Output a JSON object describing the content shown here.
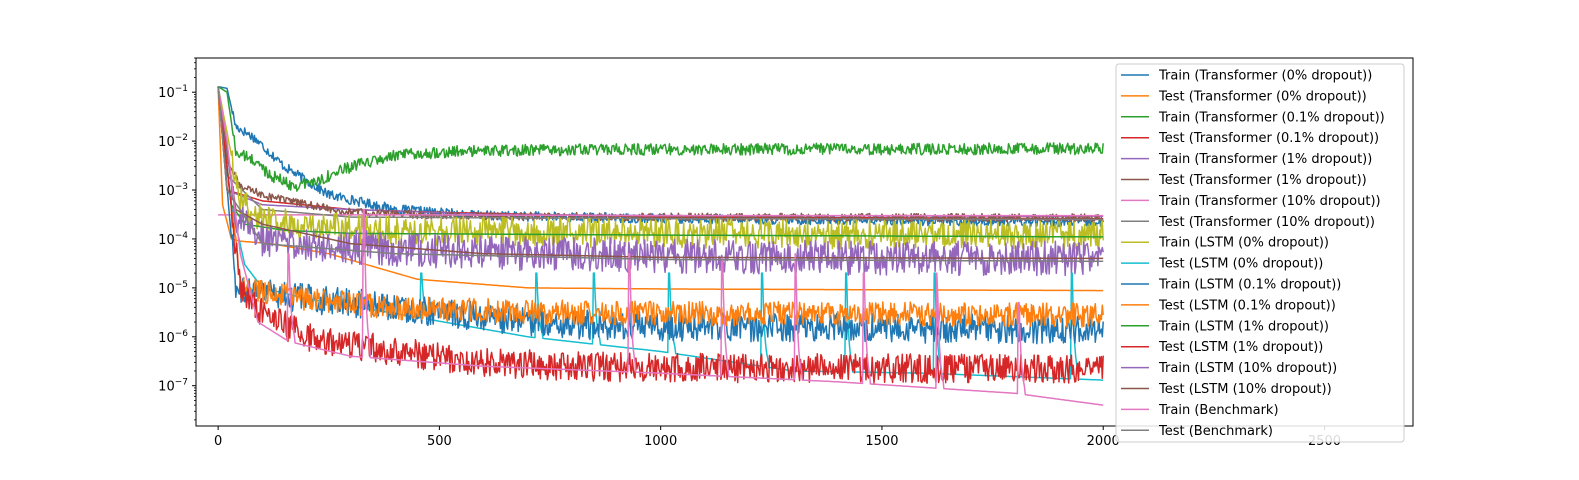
{
  "chart_data": {
    "type": "line",
    "title": "",
    "xlabel": "",
    "ylabel": "",
    "x_scale": "linear",
    "y_scale": "log",
    "xlim": [
      -50,
      2700
    ],
    "ylim": [
      1.5e-08,
      0.5
    ],
    "grid": false,
    "legend_position": "right",
    "x_ticks": [
      {
        "value": 0,
        "label": "0"
      },
      {
        "value": 500,
        "label": "500"
      },
      {
        "value": 1000,
        "label": "1000"
      },
      {
        "value": 1500,
        "label": "1500"
      },
      {
        "value": 2000,
        "label": "2000"
      },
      {
        "value": 2500,
        "label": "2500"
      }
    ],
    "y_ticks": [
      {
        "value": 0.1,
        "base": "10",
        "exp": "−1"
      },
      {
        "value": 0.01,
        "base": "10",
        "exp": "−2"
      },
      {
        "value": 0.001,
        "base": "10",
        "exp": "−3"
      },
      {
        "value": 0.0001,
        "base": "10",
        "exp": "−4"
      },
      {
        "value": 1e-05,
        "base": "10",
        "exp": "−5"
      },
      {
        "value": 1e-06,
        "base": "10",
        "exp": "−6"
      },
      {
        "value": 1e-07,
        "base": "10",
        "exp": "−7"
      }
    ],
    "series": [
      {
        "name": "Train (Transformer (0% dropout))",
        "color": "#1f77b4",
        "noise": 0.1,
        "points": [
          [
            0,
            0.13
          ],
          [
            20,
            0.12
          ],
          [
            40,
            0.02
          ],
          [
            80,
            0.012
          ],
          [
            150,
            0.003
          ],
          [
            250,
            0.0008
          ],
          [
            400,
            0.0004
          ],
          [
            600,
            0.0003
          ],
          [
            1000,
            0.00026
          ],
          [
            1500,
            0.00024
          ],
          [
            2000,
            0.00022
          ]
        ]
      },
      {
        "name": "Test (Transformer (0% dropout))",
        "color": "#ff7f0e",
        "noise": 0.0,
        "points": [
          [
            0,
            0.13
          ],
          [
            10,
            0.0005
          ],
          [
            30,
            0.0001
          ],
          [
            50,
            9e-05
          ],
          [
            120,
            8e-05
          ],
          [
            250,
            5e-05
          ],
          [
            450,
            1.5e-05
          ],
          [
            700,
            1e-05
          ],
          [
            1000,
            9.5e-06
          ],
          [
            2000,
            8.8e-06
          ]
        ]
      },
      {
        "name": "Train (Transformer (0.1% dropout))",
        "color": "#2ca02c",
        "noise": 0.12,
        "points": [
          [
            0,
            0.13
          ],
          [
            20,
            0.1
          ],
          [
            40,
            0.006
          ],
          [
            80,
            0.004
          ],
          [
            120,
            0.002
          ],
          [
            170,
            0.0012
          ],
          [
            220,
            0.0015
          ],
          [
            300,
            0.003
          ],
          [
            400,
            0.005
          ],
          [
            500,
            0.006
          ],
          [
            700,
            0.0065
          ],
          [
            1000,
            0.0068
          ],
          [
            2000,
            0.007
          ]
        ]
      },
      {
        "name": "Test (Transformer (0.1% dropout))",
        "color": "#d62728",
        "noise": 0.0,
        "points": [
          [
            0,
            0.13
          ],
          [
            20,
            0.001
          ],
          [
            100,
            0.0006
          ],
          [
            300,
            0.0004
          ],
          [
            500,
            0.00035
          ],
          [
            1000,
            0.00028
          ],
          [
            2000,
            0.00026
          ]
        ]
      },
      {
        "name": "Train (Transformer (1% dropout))",
        "color": "#9467bd",
        "noise": 0.0,
        "points": [
          [
            0,
            0.13
          ],
          [
            20,
            0.001
          ],
          [
            100,
            0.0005
          ],
          [
            300,
            0.0004
          ],
          [
            600,
            0.00032
          ],
          [
            1000,
            0.0003
          ],
          [
            2000,
            0.00029
          ]
        ]
      },
      {
        "name": "Test (Transformer (1% dropout))",
        "color": "#8c564b",
        "noise": 0.08,
        "points": [
          [
            0,
            0.13
          ],
          [
            20,
            0.004
          ],
          [
            50,
            0.0012
          ],
          [
            100,
            0.0008
          ],
          [
            200,
            0.0005
          ],
          [
            300,
            0.00035
          ],
          [
            500,
            0.0003
          ],
          [
            1000,
            0.00028
          ],
          [
            2000,
            0.00027
          ]
        ]
      },
      {
        "name": "Train (Transformer (10% dropout))",
        "color": "#e377c2",
        "noise": 0.0,
        "points": [
          [
            0,
            0.00031
          ],
          [
            500,
            0.00031
          ],
          [
            1000,
            0.0003
          ],
          [
            1500,
            0.0003
          ],
          [
            2000,
            0.0003
          ]
        ]
      },
      {
        "name": "Test (Transformer (10% dropout))",
        "color": "#7f7f7f",
        "noise": 0.0,
        "points": [
          [
            0,
            0.13
          ],
          [
            20,
            0.002
          ],
          [
            100,
            0.0004
          ],
          [
            300,
            0.00028
          ],
          [
            1000,
            0.00026
          ],
          [
            2000,
            0.00025
          ]
        ]
      },
      {
        "name": "Train (LSTM (0% dropout))",
        "color": "#bcbd22",
        "noise": 0.3,
        "points": [
          [
            0,
            0.13
          ],
          [
            50,
            0.0006
          ],
          [
            100,
            0.00025
          ],
          [
            200,
            0.00018
          ],
          [
            400,
            0.00015
          ],
          [
            1000,
            0.00013
          ],
          [
            2000,
            0.00012
          ]
        ]
      },
      {
        "name": "Test (LSTM (0% dropout))",
        "color": "#17becf",
        "noise": 0.0,
        "spikes": [
          [
            460,
            2e-05
          ],
          [
            720,
            2e-05
          ],
          [
            850,
            2e-05
          ],
          [
            1020,
            2e-05
          ],
          [
            1230,
            2e-05
          ],
          [
            1420,
            2e-05
          ],
          [
            1620,
            2e-05
          ],
          [
            1930,
            2e-05
          ]
        ],
        "points": [
          [
            0,
            0.13
          ],
          [
            30,
            0.0005
          ],
          [
            60,
            3e-05
          ],
          [
            100,
            1e-05
          ],
          [
            200,
            6e-06
          ],
          [
            400,
            3e-06
          ],
          [
            700,
            1e-06
          ],
          [
            1000,
            5e-07
          ],
          [
            1300,
            2e-07
          ],
          [
            1600,
            1.8e-07
          ],
          [
            2000,
            1.3e-07
          ]
        ]
      },
      {
        "name": "Train (LSTM (0.1% dropout))",
        "color": "#1f77b4",
        "noise": 0.3,
        "points": [
          [
            0,
            0.13
          ],
          [
            40,
            1e-05
          ],
          [
            100,
            8e-06
          ],
          [
            200,
            6e-06
          ],
          [
            400,
            4e-06
          ],
          [
            600,
            2.5e-06
          ],
          [
            800,
            1.8e-06
          ],
          [
            1000,
            1.6e-06
          ],
          [
            1500,
            1.5e-06
          ],
          [
            2000,
            1.4e-06
          ]
        ]
      },
      {
        "name": "Test (LSTM (0.1% dropout))",
        "color": "#ff7f0e",
        "noise": 0.25,
        "points": [
          [
            0,
            0.13
          ],
          [
            50,
            1e-05
          ],
          [
            200,
            6e-06
          ],
          [
            400,
            4e-06
          ],
          [
            700,
            3.2e-06
          ],
          [
            1000,
            3e-06
          ],
          [
            2000,
            2.8e-06
          ]
        ]
      },
      {
        "name": "Train (LSTM (1% dropout))",
        "color": "#2ca02c",
        "noise": 0.0,
        "points": [
          [
            0,
            0.13
          ],
          [
            30,
            0.0005
          ],
          [
            60,
            0.0002
          ],
          [
            150,
            0.00015
          ],
          [
            300,
            0.00013
          ],
          [
            1000,
            0.00012
          ],
          [
            2000,
            0.00011
          ]
        ]
      },
      {
        "name": "Test (LSTM (1% dropout))",
        "color": "#d62728",
        "noise": 0.3,
        "points": [
          [
            0,
            0.13
          ],
          [
            50,
            1e-05
          ],
          [
            100,
            3e-06
          ],
          [
            200,
            1e-06
          ],
          [
            400,
            5e-07
          ],
          [
            600,
            3e-07
          ],
          [
            800,
            2.5e-07
          ],
          [
            1000,
            2.3e-07
          ],
          [
            2000,
            2.2e-07
          ]
        ]
      },
      {
        "name": "Train (LSTM (10% dropout))",
        "color": "#9467bd",
        "noise": 0.35,
        "points": [
          [
            0,
            0.13
          ],
          [
            40,
            0.0003
          ],
          [
            100,
            0.0001
          ],
          [
            200,
            8e-05
          ],
          [
            400,
            6e-05
          ],
          [
            700,
            5e-05
          ],
          [
            1000,
            4.5e-05
          ],
          [
            1500,
            4e-05
          ],
          [
            2000,
            4e-05
          ]
        ]
      },
      {
        "name": "Test (LSTM (10% dropout))",
        "color": "#8c564b",
        "noise": 0.0,
        "points": [
          [
            0,
            0.13
          ],
          [
            40,
            0.0004
          ],
          [
            100,
            0.0002
          ],
          [
            300,
            8e-05
          ],
          [
            600,
            5e-05
          ],
          [
            1000,
            4.2e-05
          ],
          [
            2000,
            4e-05
          ]
        ]
      },
      {
        "name": "Train (Benchmark)",
        "color": "#e377c2",
        "noise": 0.0,
        "spikes": [
          [
            160,
            5e-05
          ],
          [
            330,
            0.0004
          ],
          [
            930,
            5e-05
          ],
          [
            1140,
            4e-05
          ],
          [
            1305,
            5e-05
          ],
          [
            1460,
            2e-05
          ],
          [
            1625,
            2e-05
          ],
          [
            1810,
            5e-06
          ]
        ],
        "points": [
          [
            0,
            0.13
          ],
          [
            20,
            0.01
          ],
          [
            50,
            5e-05
          ],
          [
            90,
            2e-06
          ],
          [
            160,
            8e-07
          ],
          [
            300,
            4e-07
          ],
          [
            600,
            2.5e-07
          ],
          [
            1000,
            1.8e-07
          ],
          [
            1400,
            1.2e-07
          ],
          [
            1800,
            7e-08
          ],
          [
            2000,
            4e-08
          ]
        ]
      },
      {
        "name": "Test (Benchmark)",
        "color": "#7f7f7f",
        "noise": 0.0,
        "points": [
          [
            0,
            0.13
          ],
          [
            20,
            0.001
          ],
          [
            100,
            8e-05
          ],
          [
            400,
            5e-05
          ],
          [
            1000,
            3.8e-05
          ],
          [
            2000,
            3.5e-05
          ]
        ]
      }
    ]
  }
}
